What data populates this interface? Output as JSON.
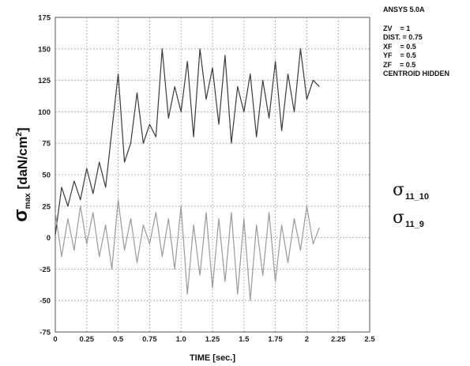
{
  "info_panel": {
    "title": "ANSYS 5.0A",
    "rows": [
      {
        "key": "ZV",
        "value": "= 1"
      },
      {
        "key": "DIST.",
        "value": "= 0.75"
      },
      {
        "key": "XF",
        "value": "= 0.5"
      },
      {
        "key": "YF",
        "value": "= 0.5"
      },
      {
        "key": "ZF",
        "value": "= 0.5"
      },
      {
        "key": "CENTROID HIDDEN",
        "value": ""
      }
    ]
  },
  "series_labels": [
    {
      "symbol": "σ",
      "subscript": "11_10"
    },
    {
      "symbol": "σ",
      "subscript": "11_9"
    }
  ],
  "chart_data": {
    "type": "line",
    "title": "",
    "xlabel": "TIME [sec.]",
    "ylabel": {
      "symbol": "σ",
      "sub": "max",
      "rest": " [daN/cm",
      "sup": "2",
      "close": "]"
    },
    "xlim": [
      0,
      2.5
    ],
    "ylim": [
      -75,
      175
    ],
    "x_ticks": [
      0,
      0.25,
      0.5,
      0.75,
      1.0,
      1.25,
      1.5,
      1.75,
      2.0,
      2.25,
      2.5
    ],
    "x_tick_labels": [
      "0",
      "0.25",
      "0.5",
      "0.75",
      "1.0",
      "1.25",
      "1.5",
      "1.75",
      "2",
      "2.25",
      "2.5"
    ],
    "y_ticks": [
      -75,
      -50,
      -25,
      0,
      25,
      50,
      75,
      100,
      125,
      150,
      175
    ],
    "y_tick_labels": [
      "-75",
      "-50",
      "-25",
      "0",
      "25",
      "50",
      "75",
      "100",
      "125",
      "150",
      "175"
    ],
    "grid": "dotted",
    "series": [
      {
        "color": "#3a3a3a",
        "x": [
          0.0,
          0.05,
          0.1,
          0.15,
          0.2,
          0.25,
          0.3,
          0.35,
          0.4,
          0.45,
          0.5,
          0.55,
          0.6,
          0.65,
          0.7,
          0.75,
          0.8,
          0.85,
          0.9,
          0.95,
          1.0,
          1.05,
          1.1,
          1.15,
          1.2,
          1.25,
          1.3,
          1.35,
          1.4,
          1.45,
          1.5,
          1.55,
          1.6,
          1.65,
          1.7,
          1.75,
          1.8,
          1.85,
          1.9,
          1.95,
          2.0,
          2.05,
          2.1
        ],
        "y": [
          2,
          40,
          25,
          45,
          30,
          55,
          35,
          60,
          40,
          85,
          130,
          60,
          75,
          115,
          75,
          90,
          80,
          150,
          95,
          120,
          100,
          140,
          80,
          150,
          110,
          135,
          90,
          145,
          75,
          120,
          100,
          130,
          80,
          125,
          95,
          140,
          85,
          130,
          100,
          150,
          110,
          125,
          120
        ]
      },
      {
        "color": "#9a9a9a",
        "x": [
          0.0,
          0.05,
          0.1,
          0.15,
          0.2,
          0.25,
          0.3,
          0.35,
          0.4,
          0.45,
          0.5,
          0.55,
          0.6,
          0.65,
          0.7,
          0.75,
          0.8,
          0.85,
          0.9,
          0.95,
          1.0,
          1.05,
          1.1,
          1.15,
          1.2,
          1.25,
          1.3,
          1.35,
          1.4,
          1.45,
          1.5,
          1.55,
          1.6,
          1.65,
          1.7,
          1.75,
          1.8,
          1.85,
          1.9,
          1.95,
          2.0,
          2.05,
          2.1
        ],
        "y": [
          20,
          -15,
          15,
          -10,
          25,
          -5,
          20,
          -15,
          10,
          -25,
          30,
          -10,
          15,
          -20,
          10,
          -5,
          20,
          -15,
          15,
          -25,
          25,
          -45,
          10,
          -30,
          20,
          -40,
          15,
          -35,
          20,
          -45,
          15,
          -50,
          10,
          -30,
          20,
          -35,
          10,
          -20,
          15,
          -10,
          25,
          -5,
          8
        ]
      }
    ]
  }
}
